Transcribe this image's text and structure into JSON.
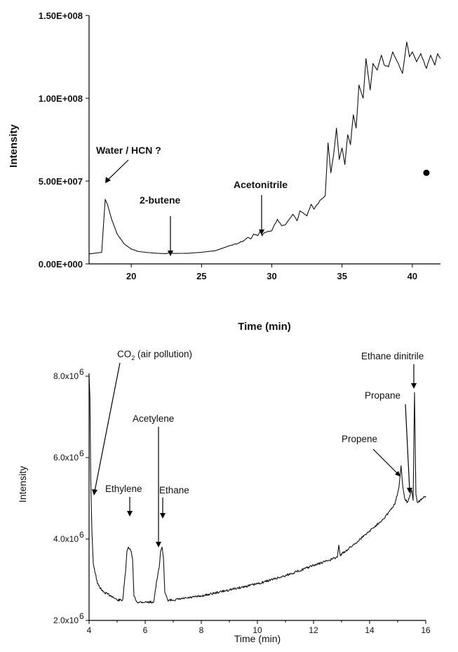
{
  "chart_data": [
    {
      "type": "line",
      "xlabel": "Time (min)",
      "ylabel": "Intensity",
      "xlim": [
        17,
        42
      ],
      "ylim": [
        0,
        150000000
      ],
      "x_ticks": [
        20,
        25,
        30,
        35,
        40
      ],
      "x_tick_labels": [
        "20",
        "25",
        "30",
        "35",
        "40"
      ],
      "y_ticks": [
        0,
        50000000,
        100000000,
        150000000
      ],
      "y_tick_labels": [
        "0.00E+000",
        "5.00E+007",
        "1.00E+008",
        "1.50E+008"
      ],
      "series": [
        {
          "x": [
            17,
            17.9,
            18.0,
            18.15,
            18.3,
            18.6,
            19.0,
            19.5,
            20.0,
            20.5,
            21.0,
            21.5,
            22.0,
            22.5,
            22.8,
            23.0,
            24.0,
            25.0,
            26.0,
            27.0,
            27.5,
            28.0,
            28.3,
            28.5,
            28.7,
            29.0,
            29.2,
            29.3,
            29.5,
            30.0,
            30.4,
            30.7,
            31.0,
            31.5,
            31.8,
            32.0,
            32.5,
            32.8,
            33.0,
            33.5,
            33.8,
            34.0,
            34.2,
            34.4,
            34.6,
            34.8,
            35.0,
            35.2,
            35.4,
            35.6,
            35.8,
            36.0,
            36.2,
            36.5,
            36.7,
            37.0,
            37.2,
            37.5,
            37.8,
            38.0,
            38.3,
            38.6,
            39.0,
            39.3,
            39.6,
            39.8,
            40.0,
            40.3,
            40.6,
            41.0,
            41.3,
            41.6,
            41.8,
            42.0
          ],
          "y": [
            6000000,
            7000000,
            20000000,
            39000000,
            36000000,
            27000000,
            18000000,
            12000000,
            9000000,
            7500000,
            7000000,
            6600000,
            6300000,
            6200000,
            7000000,
            6300000,
            6400000,
            7000000,
            8000000,
            11000000,
            12000000,
            14000000,
            16000000,
            15000000,
            18000000,
            17000000,
            20000000,
            17000000,
            19000000,
            20000000,
            27000000,
            23000000,
            24000000,
            30000000,
            26000000,
            32000000,
            29000000,
            36000000,
            33000000,
            39000000,
            41000000,
            73000000,
            55000000,
            66000000,
            82000000,
            63000000,
            70000000,
            60000000,
            78000000,
            72000000,
            90000000,
            82000000,
            108000000,
            100000000,
            124000000,
            105000000,
            121000000,
            117000000,
            126000000,
            120000000,
            119000000,
            128000000,
            121000000,
            115000000,
            134000000,
            125000000,
            128000000,
            122000000,
            127000000,
            118000000,
            126000000,
            120000000,
            127000000,
            124000000
          ]
        }
      ],
      "marker_point": {
        "x": 41.0,
        "y": 55000000
      },
      "annotations": [
        {
          "text": "Water / HCN ?",
          "x": 18.1,
          "y": 39000000
        },
        {
          "text": "2-butene",
          "x": 22.8,
          "y": 7000000
        },
        {
          "text": "Acetonitrile",
          "x": 29.2,
          "y": 20000000
        }
      ]
    },
    {
      "type": "line",
      "xlabel": "Time (min)",
      "ylabel": "Intensity",
      "xlim": [
        4,
        16
      ],
      "ylim": [
        2000000,
        8000000
      ],
      "x_ticks": [
        4,
        6,
        8,
        10,
        12,
        14,
        16
      ],
      "x_tick_labels": [
        "4",
        "6",
        "8",
        "10",
        "12",
        "14",
        "16"
      ],
      "y_ticks": [
        2000000,
        4000000,
        6000000,
        8000000
      ],
      "y_tick_labels": [
        "2.0x10",
        "4.0x10",
        "6.0x10",
        "8.0x10"
      ],
      "y_tick_exponent": "6",
      "series": [
        {
          "x": [
            4.0,
            4.03,
            4.06,
            4.1,
            4.15,
            4.3,
            4.5,
            4.8,
            5.0,
            5.2,
            5.3,
            5.35,
            5.4,
            5.5,
            5.55,
            5.6,
            5.7,
            6.0,
            6.3,
            6.42,
            6.5,
            6.55,
            6.6,
            6.65,
            6.7,
            6.8,
            7.0,
            7.5,
            8.0,
            9.0,
            10.0,
            11.0,
            12.0,
            12.85,
            12.9,
            12.95,
            13.5,
            14.0,
            14.5,
            14.9,
            15.05,
            15.12,
            15.18,
            15.25,
            15.35,
            15.45,
            15.5,
            15.55,
            15.6,
            15.65,
            15.7,
            15.8,
            16.0
          ],
          "y": [
            8000000,
            7500000,
            5500000,
            4200000,
            3400000,
            2900000,
            2700000,
            2600000,
            2500000,
            2500000,
            3200000,
            3700000,
            3800000,
            3700000,
            3500000,
            2600000,
            2450000,
            2450000,
            2450000,
            3000000,
            3300000,
            3700000,
            3800000,
            3550000,
            2700000,
            2500000,
            2500000,
            2550000,
            2600000,
            2750000,
            2900000,
            3100000,
            3350000,
            3550000,
            3850000,
            3600000,
            3900000,
            4200000,
            4500000,
            4850000,
            5300000,
            5800000,
            5300000,
            5000000,
            4900000,
            5100000,
            5200000,
            4950000,
            7600000,
            5100000,
            4900000,
            4950000,
            5050000
          ]
        }
      ],
      "annotations": [
        {
          "text": "CO",
          "subscript": "2",
          "suffix": " (air pollution)",
          "x": 4.02,
          "y": 6950000
        },
        {
          "text": "Ethylene",
          "x": 5.42,
          "y": 3800000
        },
        {
          "text": "Acetylene",
          "x": 6.5,
          "y": 3300000
        },
        {
          "text": "Ethane",
          "x": 6.65,
          "y": 3800000
        },
        {
          "text": "Propene",
          "x": 15.1,
          "y": 5800000
        },
        {
          "text": "Propane",
          "x": 15.45,
          "y": 5200000
        },
        {
          "text": "Ethane dinitrile",
          "x": 15.6,
          "y": 7600000
        }
      ]
    }
  ]
}
